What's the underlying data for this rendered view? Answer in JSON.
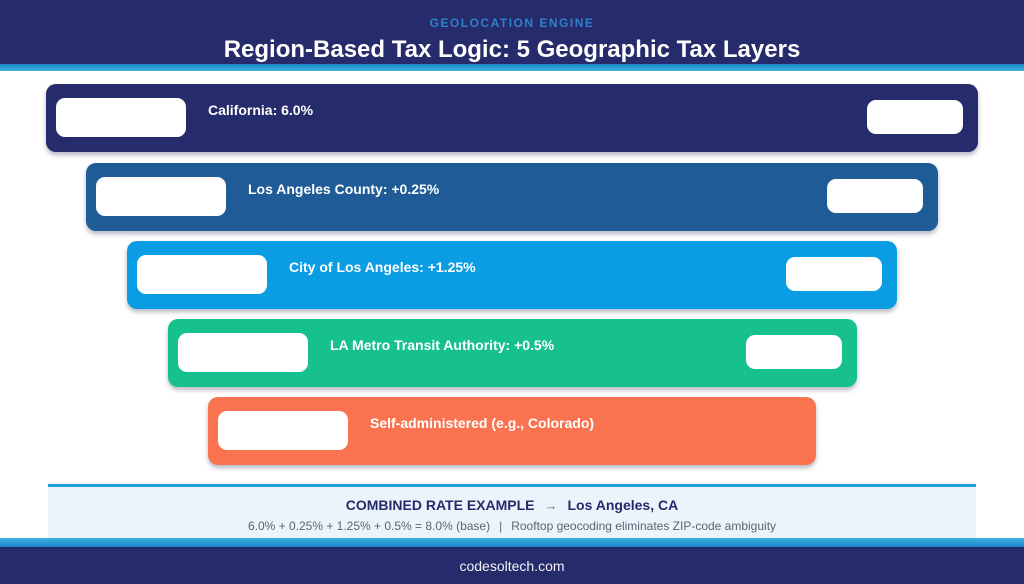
{
  "header": {
    "eyebrow": "GEOLOCATION ENGINE",
    "title": "Region-Based Tax Logic: 5 Geographic Tax Layers",
    "bg_color": "#252b6b",
    "eyebrow_color": "#2f80cc",
    "accent_color": "#1f9ed9"
  },
  "layers": [
    {
      "label": "California: 6.0%",
      "color": "#252b6b",
      "has_right_badge": true
    },
    {
      "label": "Los Angeles County: +0.25%",
      "color": "#1e5b97",
      "has_right_badge": true
    },
    {
      "label": "City of Los Angeles: +1.25%",
      "color": "#0a9de4",
      "has_right_badge": true
    },
    {
      "label": "LA Metro Transit Authority: +0.5%",
      "color": "#16c18d",
      "has_right_badge": true
    },
    {
      "label": "Self-administered (e.g., Colorado)",
      "color": "#fa7350",
      "has_right_badge": false
    }
  ],
  "summary": {
    "title": "COMBINED RATE EXAMPLE",
    "arrow": "→",
    "location": "Los Angeles, CA",
    "formula": "6.0% + 0.25% + 1.25% + 0.5%  =  8.0% (base)",
    "separator": "|",
    "note": "Rooftop geocoding eliminates ZIP-code ambiguity",
    "bg_color": "#ecf4fb"
  },
  "footer": {
    "text": "codesoltech.com",
    "bg_color": "#252b6b"
  }
}
